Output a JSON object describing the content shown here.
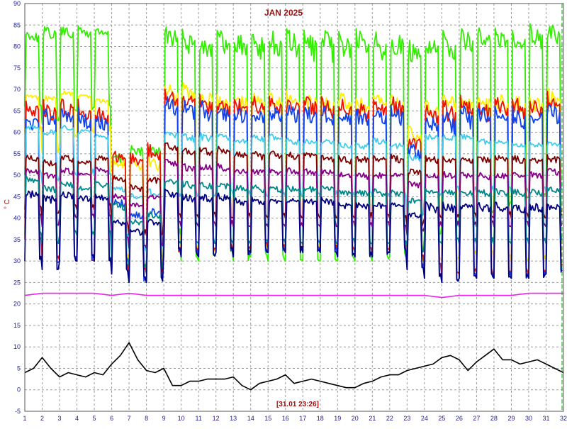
{
  "chart_data": {
    "type": "line",
    "title": "JAN 2025",
    "timestamp": "[31.01 23:26]",
    "ylabel": "° C",
    "ylim": [
      -5,
      90
    ],
    "xlim": [
      1,
      32
    ],
    "yticks": [
      -5,
      0,
      5,
      10,
      15,
      20,
      25,
      30,
      35,
      40,
      45,
      50,
      55,
      60,
      65,
      70,
      75,
      80,
      85,
      90
    ],
    "xticks": [
      1,
      2,
      3,
      4,
      5,
      6,
      7,
      8,
      9,
      10,
      11,
      12,
      13,
      14,
      15,
      16,
      17,
      18,
      19,
      20,
      21,
      22,
      23,
      24,
      25,
      26,
      27,
      28,
      29,
      30,
      31,
      32
    ],
    "grid": true,
    "cursor_x": 32,
    "colors": {
      "title": "#a01010",
      "axis_text": "#1a1a8c",
      "grid": "#9a9a9a",
      "cursor": "#00aa00"
    },
    "series": [
      {
        "color": "#33ee00",
        "day_high": [
          84,
          85,
          85,
          85,
          85,
          56,
          58,
          58,
          86,
          86,
          85,
          85,
          85,
          85,
          85,
          85,
          85,
          85,
          85,
          85,
          85,
          85,
          82,
          84,
          84,
          85,
          85,
          85,
          85,
          86,
          86
        ],
        "day_low": [
          66,
          62,
          64,
          65,
          66,
          30,
          28,
          30,
          36,
          30,
          30,
          32,
          30,
          31,
          30,
          30,
          30,
          30,
          30,
          30,
          30,
          31,
          32,
          36,
          38,
          40,
          40,
          42,
          44,
          45,
          46
        ]
      },
      {
        "color": "#ffee00",
        "day_high": [
          69,
          69,
          70,
          69,
          68,
          55,
          55,
          55,
          72,
          72,
          71,
          70,
          70,
          70,
          70,
          70,
          70,
          70,
          70,
          69,
          70,
          70,
          62,
          68,
          70,
          70,
          70,
          70,
          70,
          70,
          71
        ],
        "day_low": [
          60,
          55,
          58,
          60,
          60,
          30,
          28,
          28,
          36,
          32,
          32,
          33,
          32,
          33,
          33,
          33,
          33,
          33,
          32,
          32,
          32,
          33,
          30,
          30,
          30,
          31,
          31,
          30,
          30,
          30,
          30
        ]
      },
      {
        "color": "#ee1100",
        "day_high": [
          68,
          68,
          69,
          68,
          67,
          56,
          56,
          58,
          71,
          71,
          70,
          69,
          69,
          69,
          69,
          69,
          69,
          69,
          69,
          68,
          69,
          69,
          60,
          67,
          68,
          69,
          69,
          69,
          69,
          69,
          70
        ],
        "day_low": [
          35,
          30,
          30,
          30,
          30,
          28,
          27,
          27,
          32,
          32,
          32,
          33,
          32,
          33,
          33,
          33,
          33,
          33,
          32,
          32,
          32,
          33,
          30,
          28,
          26,
          27,
          27,
          27,
          27,
          27,
          28
        ]
      },
      {
        "color": "#1144ee",
        "day_high": [
          65,
          66,
          67,
          66,
          65,
          45,
          42,
          43,
          69,
          69,
          68,
          67,
          67,
          67,
          67,
          67,
          67,
          67,
          67,
          66,
          67,
          67,
          58,
          65,
          66,
          67,
          67,
          67,
          67,
          67,
          68
        ],
        "day_low": [
          30,
          29,
          30,
          30,
          30,
          27,
          25,
          25,
          32,
          31,
          31,
          32,
          31,
          32,
          32,
          32,
          32,
          32,
          31,
          31,
          31,
          32,
          28,
          26,
          25,
          26,
          26,
          26,
          26,
          26,
          27
        ]
      },
      {
        "color": "#44ccee",
        "day_high": [
          62,
          61,
          62,
          61,
          60,
          48,
          46,
          47,
          61,
          60,
          60,
          60,
          59,
          60,
          60,
          59,
          59,
          59,
          58,
          58,
          59,
          58,
          55,
          60,
          60,
          60,
          59,
          59,
          58,
          58,
          58
        ],
        "day_low": [
          50,
          48,
          50,
          50,
          50,
          35,
          32,
          32,
          45,
          45,
          45,
          46,
          45,
          45,
          45,
          45,
          45,
          45,
          45,
          45,
          45,
          45,
          40,
          45,
          46,
          46,
          46,
          46,
          46,
          46,
          46
        ]
      },
      {
        "color": "#800000",
        "day_high": [
          55,
          54,
          55,
          54,
          55,
          50,
          48,
          50,
          58,
          57,
          57,
          57,
          56,
          56,
          56,
          56,
          56,
          55,
          55,
          55,
          55,
          55,
          52,
          55,
          55,
          55,
          55,
          55,
          55,
          55,
          55
        ],
        "day_low": [
          42,
          40,
          42,
          42,
          42,
          38,
          36,
          36,
          40,
          40,
          40,
          40,
          40,
          40,
          40,
          40,
          40,
          40,
          40,
          40,
          40,
          40,
          38,
          40,
          40,
          40,
          40,
          40,
          40,
          40,
          40
        ]
      },
      {
        "color": "#880088",
        "day_high": [
          52,
          51,
          52,
          51,
          52,
          46,
          44,
          46,
          54,
          53,
          53,
          53,
          52,
          52,
          52,
          52,
          52,
          52,
          51,
          51,
          51,
          51,
          49,
          51,
          51,
          51,
          51,
          51,
          51,
          51,
          52
        ],
        "day_low": [
          40,
          38,
          40,
          40,
          40,
          35,
          33,
          33,
          38,
          38,
          38,
          38,
          38,
          38,
          38,
          38,
          38,
          38,
          38,
          38,
          38,
          38,
          36,
          38,
          38,
          38,
          38,
          38,
          38,
          38,
          38
        ]
      },
      {
        "color": "#008888",
        "day_high": [
          50,
          48,
          49,
          48,
          49,
          44,
          40,
          42,
          50,
          49,
          49,
          49,
          48,
          48,
          48,
          48,
          48,
          48,
          47,
          47,
          47,
          47,
          45,
          47,
          47,
          47,
          47,
          47,
          47,
          47,
          48
        ],
        "day_low": [
          36,
          34,
          36,
          36,
          36,
          30,
          28,
          28,
          34,
          34,
          34,
          34,
          34,
          34,
          34,
          34,
          34,
          34,
          34,
          34,
          34,
          34,
          32,
          34,
          34,
          34,
          34,
          34,
          34,
          34,
          34
        ]
      },
      {
        "color": "#000080",
        "day_high": [
          47,
          46,
          47,
          46,
          46,
          40,
          38,
          40,
          47,
          46,
          46,
          46,
          45,
          45,
          45,
          45,
          45,
          45,
          44,
          44,
          44,
          44,
          42,
          44,
          44,
          44,
          44,
          44,
          44,
          44,
          44
        ],
        "day_low": [
          30,
          28,
          30,
          30,
          30,
          27,
          25,
          25,
          32,
          31,
          31,
          32,
          31,
          32,
          32,
          32,
          32,
          32,
          31,
          31,
          31,
          32,
          28,
          26,
          25,
          26,
          26,
          26,
          26,
          26,
          27
        ]
      },
      {
        "color": "#ee22ee",
        "x": [
          1,
          2,
          3,
          4,
          5,
          6,
          7,
          8,
          9,
          10,
          11,
          12,
          13,
          14,
          15,
          16,
          17,
          18,
          19,
          20,
          21,
          22,
          23,
          24,
          25,
          26,
          27,
          28,
          29,
          30,
          31,
          32
        ],
        "values": [
          22,
          22.5,
          22.5,
          22.5,
          22.5,
          22,
          22.5,
          22,
          22,
          22,
          22,
          22,
          22,
          22,
          22,
          22,
          22,
          22,
          22,
          22,
          22,
          22,
          22,
          22,
          21.5,
          22,
          22,
          22,
          22,
          22.5,
          22.5,
          22.5
        ]
      },
      {
        "color": "#000000",
        "x": [
          1,
          1.5,
          2,
          2.5,
          3,
          3.5,
          4,
          4.5,
          5,
          5.5,
          6,
          6.5,
          7,
          7.5,
          8,
          8.5,
          9,
          9.5,
          10,
          10.5,
          11,
          11.5,
          12,
          12.5,
          13,
          13.5,
          14,
          14.5,
          15,
          15.5,
          16,
          16.5,
          17,
          17.5,
          18,
          18.5,
          19,
          19.5,
          20,
          20.5,
          21,
          21.5,
          22,
          22.5,
          23,
          23.5,
          24,
          24.5,
          25,
          25.5,
          26,
          26.5,
          27,
          27.5,
          28,
          28.5,
          29,
          29.5,
          30,
          30.5,
          31,
          31.5,
          32
        ],
        "values": [
          4,
          5,
          7.5,
          5,
          3,
          4,
          3.5,
          3,
          4,
          3.5,
          6,
          8,
          11,
          7,
          4.5,
          4,
          5,
          1,
          1,
          2,
          2,
          2.5,
          2.5,
          2.5,
          3,
          1,
          0,
          1.5,
          2,
          2.5,
          3.5,
          1.5,
          2,
          2.5,
          2,
          1.5,
          1,
          0.5,
          0.5,
          1.5,
          2,
          3,
          3.5,
          3.5,
          4.5,
          5,
          5.5,
          6,
          7.5,
          8,
          7,
          4.5,
          6.5,
          8,
          9.5,
          7,
          7,
          6,
          6.5,
          7,
          6,
          5,
          4
        ]
      }
    ]
  }
}
